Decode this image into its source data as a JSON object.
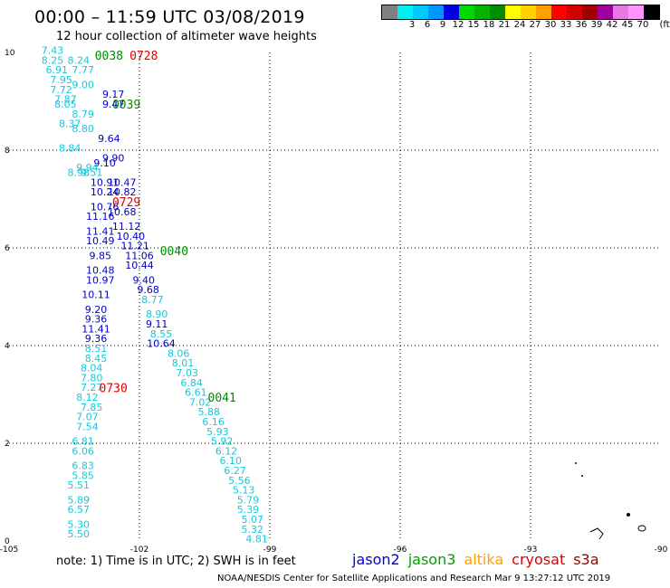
{
  "header": {
    "title": "00:00 – 11:59 UTC 03/08/2019",
    "subtitle": "12 hour collection of altimeter wave heights"
  },
  "legend": {
    "unit": "(ft)",
    "swatches": [
      {
        "color": "#808080",
        "label": ""
      },
      {
        "color": "#00f0f0",
        "label": "3"
      },
      {
        "color": "#00c8ff",
        "label": "6"
      },
      {
        "color": "#0096ff",
        "label": "9"
      },
      {
        "color": "#0000e0",
        "label": "12"
      },
      {
        "color": "#00d800",
        "label": "15"
      },
      {
        "color": "#00b400",
        "label": "18"
      },
      {
        "color": "#008c00",
        "label": "21"
      },
      {
        "color": "#ffff00",
        "label": "24"
      },
      {
        "color": "#ffd200",
        "label": "27"
      },
      {
        "color": "#ffa000",
        "label": "30"
      },
      {
        "color": "#ff0000",
        "label": "33"
      },
      {
        "color": "#d20000",
        "label": "36"
      },
      {
        "color": "#a00000",
        "label": "39"
      },
      {
        "color": "#a000a0",
        "label": "42"
      },
      {
        "color": "#e678e6",
        "label": "45"
      },
      {
        "color": "#ff96ff",
        "label": "70"
      },
      {
        "color": "#000000",
        "label": ""
      }
    ]
  },
  "axes": {
    "lon_ticks": [
      "-105",
      "-102",
      "-99",
      "-96",
      "-93",
      "-90"
    ],
    "lat_ticks": [
      "0",
      "2",
      "4",
      "6",
      "8",
      "10"
    ]
  },
  "pass_labels": [
    {
      "time": "0038",
      "color": "#008c00",
      "lon": -102.7,
      "lat": 9.85
    },
    {
      "time": "0728",
      "color": "#e00000",
      "lon": -101.9,
      "lat": 9.85
    },
    {
      "time": "0039",
      "color": "#008c00",
      "lon": -102.3,
      "lat": 8.85
    },
    {
      "time": "0729",
      "color": "#e00000",
      "lon": -102.3,
      "lat": 6.85
    },
    {
      "time": "0040",
      "color": "#008c00",
      "lon": -101.2,
      "lat": 5.85
    },
    {
      "time": "0730",
      "color": "#e00000",
      "lon": -102.6,
      "lat": 3.05
    },
    {
      "time": "0041",
      "color": "#008c00",
      "lon": -100.1,
      "lat": 2.85
    }
  ],
  "tracks": [
    {
      "name": "jason2",
      "points": [
        {
          "v": "9.17",
          "lon": -102.6,
          "lat": 9.07,
          "c": "#0000c8"
        },
        {
          "v": "9.47",
          "lon": -102.6,
          "lat": 8.87,
          "c": "#0000c8"
        },
        {
          "v": "9.64",
          "lon": -102.7,
          "lat": 8.17,
          "c": "#0000c8"
        },
        {
          "v": "9.90",
          "lon": -102.6,
          "lat": 7.77,
          "c": "#0000c8"
        },
        {
          "v": "9.10",
          "lon": -102.8,
          "lat": 7.67,
          "c": "#0000c8"
        },
        {
          "v": "10.91",
          "lon": -102.8,
          "lat": 7.27,
          "c": "#0000c8"
        },
        {
          "v": "10.47",
          "lon": -102.4,
          "lat": 7.27,
          "c": "#0000c8"
        },
        {
          "v": "10.24",
          "lon": -102.8,
          "lat": 7.07,
          "c": "#0000c8"
        },
        {
          "v": "10.82",
          "lon": -102.4,
          "lat": 7.07,
          "c": "#0000c8"
        },
        {
          "v": "10.76",
          "lon": -102.8,
          "lat": 6.77,
          "c": "#0000c8"
        },
        {
          "v": "10.68",
          "lon": -102.4,
          "lat": 6.67,
          "c": "#0000c8"
        },
        {
          "v": "11.16",
          "lon": -102.9,
          "lat": 6.57,
          "c": "#0000c8"
        },
        {
          "v": "11.12",
          "lon": -102.3,
          "lat": 6.37,
          "c": "#0000c8"
        },
        {
          "v": "11.41",
          "lon": -102.9,
          "lat": 6.27,
          "c": "#0000c8"
        },
        {
          "v": "10.40",
          "lon": -102.2,
          "lat": 6.17,
          "c": "#0000c8"
        },
        {
          "v": "10.49",
          "lon": -102.9,
          "lat": 6.07,
          "c": "#0000c8"
        },
        {
          "v": "11.21",
          "lon": -102.1,
          "lat": 5.97,
          "c": "#0000c8"
        },
        {
          "v": "9.85",
          "lon": -102.9,
          "lat": 5.77,
          "c": "#0000c8"
        },
        {
          "v": "11.06",
          "lon": -102.0,
          "lat": 5.77,
          "c": "#0000c8"
        },
        {
          "v": "10.48",
          "lon": -102.9,
          "lat": 5.47,
          "c": "#0000c8"
        },
        {
          "v": "10.44",
          "lon": -102.0,
          "lat": 5.57,
          "c": "#0000c8"
        },
        {
          "v": "10.97",
          "lon": -102.9,
          "lat": 5.27,
          "c": "#0000c8"
        },
        {
          "v": "9.40",
          "lon": -101.9,
          "lat": 5.27,
          "c": "#0000c8"
        },
        {
          "v": "10.11",
          "lon": -103.0,
          "lat": 4.97,
          "c": "#0000c8"
        },
        {
          "v": "9.68",
          "lon": -101.8,
          "lat": 5.07,
          "c": "#0000c8"
        },
        {
          "v": "9.20",
          "lon": -103.0,
          "lat": 4.67,
          "c": "#0000c8"
        },
        {
          "v": "9.36",
          "lon": -103.0,
          "lat": 4.47,
          "c": "#0000c8"
        },
        {
          "v": "9.11",
          "lon": -101.6,
          "lat": 4.37,
          "c": "#0000c8"
        },
        {
          "v": "11.41",
          "lon": -103.0,
          "lat": 4.27,
          "c": "#0000c8"
        },
        {
          "v": "9.36",
          "lon": -103.0,
          "lat": 4.07,
          "c": "#0000c8"
        },
        {
          "v": "10.64",
          "lon": -101.5,
          "lat": 3.97,
          "c": "#0000c8"
        }
      ]
    },
    {
      "name": "s3a",
      "points": [
        {
          "v": "7.43",
          "lon": -104.0,
          "lat": 9.97,
          "c": "#14c8dc"
        },
        {
          "v": "8.25",
          "lon": -104.0,
          "lat": 9.77,
          "c": "#14c8dc"
        },
        {
          "v": "8.24",
          "lon": -103.4,
          "lat": 9.77,
          "c": "#14c8dc"
        },
        {
          "v": "6.91",
          "lon": -103.9,
          "lat": 9.57,
          "c": "#14c8dc"
        },
        {
          "v": "7.77",
          "lon": -103.3,
          "lat": 9.57,
          "c": "#14c8dc"
        },
        {
          "v": "7.95",
          "lon": -103.8,
          "lat": 9.37,
          "c": "#14c8dc"
        },
        {
          "v": "9.00",
          "lon": -103.3,
          "lat": 9.27,
          "c": "#14c8dc"
        },
        {
          "v": "7.72",
          "lon": -103.8,
          "lat": 9.17,
          "c": "#14c8dc"
        },
        {
          "v": "7.87",
          "lon": -103.7,
          "lat": 8.97,
          "c": "#14c8dc"
        },
        {
          "v": "8.05",
          "lon": -103.7,
          "lat": 8.87,
          "c": "#14c8dc"
        },
        {
          "v": "8.79",
          "lon": -103.3,
          "lat": 8.67,
          "c": "#14c8dc"
        },
        {
          "v": "8.37",
          "lon": -103.6,
          "lat": 8.47,
          "c": "#14c8dc"
        },
        {
          "v": "8.80",
          "lon": -103.3,
          "lat": 8.37,
          "c": "#14c8dc"
        },
        {
          "v": "8.84",
          "lon": -103.6,
          "lat": 7.97,
          "c": "#14c8dc"
        },
        {
          "v": "9.94",
          "lon": -103.2,
          "lat": 7.57,
          "c": "#14c8dc"
        },
        {
          "v": "9.51",
          "lon": -103.1,
          "lat": 7.47,
          "c": "#14c8dc"
        },
        {
          "v": "8.98",
          "lon": -103.4,
          "lat": 7.47,
          "c": "#14c8dc"
        },
        {
          "v": "8.77",
          "lon": -101.7,
          "lat": 4.87,
          "c": "#14c8dc"
        },
        {
          "v": "8.90",
          "lon": -101.6,
          "lat": 4.57,
          "c": "#14c8dc"
        },
        {
          "v": "8.55",
          "lon": -101.5,
          "lat": 4.17,
          "c": "#14c8dc"
        },
        {
          "v": "8.06",
          "lon": -101.1,
          "lat": 3.77,
          "c": "#14c8dc"
        },
        {
          "v": "8.01",
          "lon": -101.0,
          "lat": 3.57,
          "c": "#14c8dc"
        },
        {
          "v": "7.03",
          "lon": -100.9,
          "lat": 3.37,
          "c": "#14c8dc"
        },
        {
          "v": "6.84",
          "lon": -100.8,
          "lat": 3.17,
          "c": "#14c8dc"
        },
        {
          "v": "6.61",
          "lon": -100.7,
          "lat": 2.97,
          "c": "#14c8dc"
        },
        {
          "v": "7.02",
          "lon": -100.6,
          "lat": 2.77,
          "c": "#14c8dc"
        },
        {
          "v": "5.88",
          "lon": -100.4,
          "lat": 2.57,
          "c": "#14c8dc"
        },
        {
          "v": "6.16",
          "lon": -100.3,
          "lat": 2.37,
          "c": "#14c8dc"
        },
        {
          "v": "5.93",
          "lon": -100.2,
          "lat": 2.17,
          "c": "#14c8dc"
        },
        {
          "v": "5.92",
          "lon": -100.1,
          "lat": 1.97,
          "c": "#14c8dc"
        },
        {
          "v": "6.12",
          "lon": -100.0,
          "lat": 1.77,
          "c": "#14c8dc"
        },
        {
          "v": "6.10",
          "lon": -99.9,
          "lat": 1.57,
          "c": "#14c8dc"
        },
        {
          "v": "6.27",
          "lon": -99.8,
          "lat": 1.37,
          "c": "#14c8dc"
        },
        {
          "v": "5.56",
          "lon": -99.7,
          "lat": 1.17,
          "c": "#14c8dc"
        },
        {
          "v": "5.13",
          "lon": -99.6,
          "lat": 0.97,
          "c": "#14c8dc"
        },
        {
          "v": "5.79",
          "lon": -99.5,
          "lat": 0.77,
          "c": "#14c8dc"
        },
        {
          "v": "5.39",
          "lon": -99.5,
          "lat": 0.57,
          "c": "#14c8dc"
        },
        {
          "v": "5.07",
          "lon": -99.4,
          "lat": 0.37,
          "c": "#14c8dc"
        },
        {
          "v": "5.32",
          "lon": -99.4,
          "lat": 0.17,
          "c": "#14c8dc"
        },
        {
          "v": "4.81",
          "lon": -99.3,
          "lat": -0.03,
          "c": "#14c8dc"
        },
        {
          "v": "8.51",
          "lon": -103.0,
          "lat": 3.87,
          "c": "#14c8dc"
        },
        {
          "v": "8.45",
          "lon": -103.0,
          "lat": 3.67,
          "c": "#14c8dc"
        },
        {
          "v": "8.04",
          "lon": -103.1,
          "lat": 3.47,
          "c": "#14c8dc"
        },
        {
          "v": "7.80",
          "lon": -103.1,
          "lat": 3.27,
          "c": "#14c8dc"
        },
        {
          "v": "7.27",
          "lon": -103.1,
          "lat": 3.07,
          "c": "#14c8dc"
        },
        {
          "v": "8.12",
          "lon": -103.2,
          "lat": 2.87,
          "c": "#14c8dc"
        },
        {
          "v": "7.85",
          "lon": -103.1,
          "lat": 2.67,
          "c": "#14c8dc"
        },
        {
          "v": "7.07",
          "lon": -103.2,
          "lat": 2.47,
          "c": "#14c8dc"
        },
        {
          "v": "7.54",
          "lon": -103.2,
          "lat": 2.27,
          "c": "#14c8dc"
        },
        {
          "v": "6.81",
          "lon": -103.3,
          "lat": 1.97,
          "c": "#14c8dc"
        },
        {
          "v": "6.06",
          "lon": -103.3,
          "lat": 1.77,
          "c": "#14c8dc"
        },
        {
          "v": "6.83",
          "lon": -103.3,
          "lat": 1.47,
          "c": "#14c8dc"
        },
        {
          "v": "5.85",
          "lon": -103.3,
          "lat": 1.27,
          "c": "#14c8dc"
        },
        {
          "v": "5.51",
          "lon": -103.4,
          "lat": 1.07,
          "c": "#14c8dc"
        },
        {
          "v": "5.89",
          "lon": -103.4,
          "lat": 0.77,
          "c": "#14c8dc"
        },
        {
          "v": "6.57",
          "lon": -103.4,
          "lat": 0.57,
          "c": "#14c8dc"
        },
        {
          "v": "5.30",
          "lon": -103.4,
          "lat": 0.27,
          "c": "#14c8dc"
        },
        {
          "v": "5.50",
          "lon": -103.4,
          "lat": 0.07,
          "c": "#14c8dc"
        }
      ]
    }
  ],
  "footer": {
    "note": "note: 1) Time is in UTC; 2) SWH is in feet",
    "credit": "NOAA/NESDIS Center for Satellite Applications and Research   Mar  9 13:27:12 UTC 2019",
    "satellites": [
      {
        "name": "jason2",
        "color": "#0000e0"
      },
      {
        "name": "jason3",
        "color": "#00a000"
      },
      {
        "name": "altika",
        "color": "#ffa000"
      },
      {
        "name": "cryosat",
        "color": "#e00000"
      },
      {
        "name": "s3a",
        "color": "#a00000"
      }
    ]
  }
}
